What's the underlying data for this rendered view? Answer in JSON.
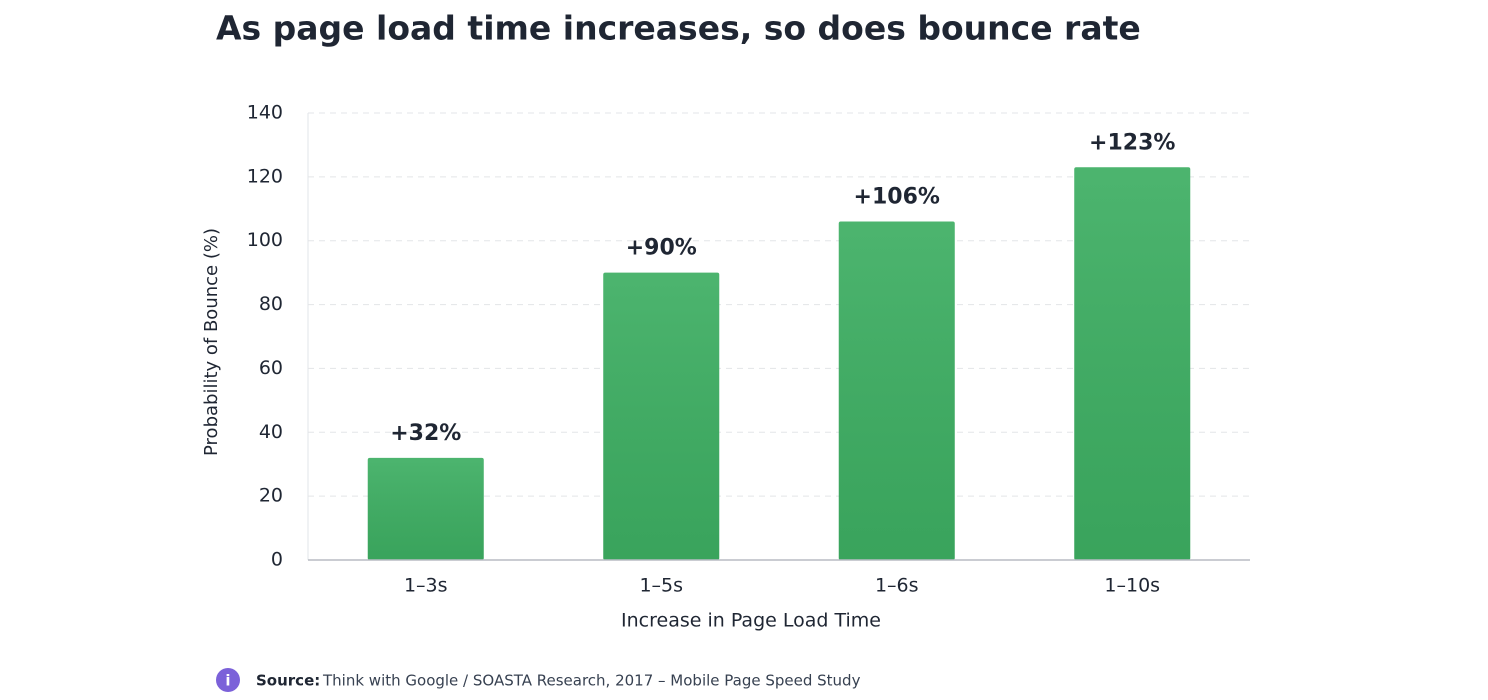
{
  "chart_data": {
    "type": "bar",
    "title": "As page load time increases, so does bounce rate",
    "categories": [
      "1–3s",
      "1–5s",
      "1–6s",
      "1–10s"
    ],
    "values": [
      32,
      90,
      106,
      123
    ],
    "value_labels": [
      "+32%",
      "+90%",
      "+106%",
      "+123%"
    ],
    "color": "#3dae62",
    "xlabel": "Increase in Page Load Time",
    "ylabel": "Probability of Bounce (%)",
    "ylim": [
      0,
      140
    ],
    "yticks": [
      0,
      20,
      40,
      60,
      80,
      100,
      120,
      140
    ],
    "grid": true,
    "source_label": "Source:",
    "source": "Think with Google / SOASTA Research, 2017 – Mobile Page Speed Study"
  }
}
